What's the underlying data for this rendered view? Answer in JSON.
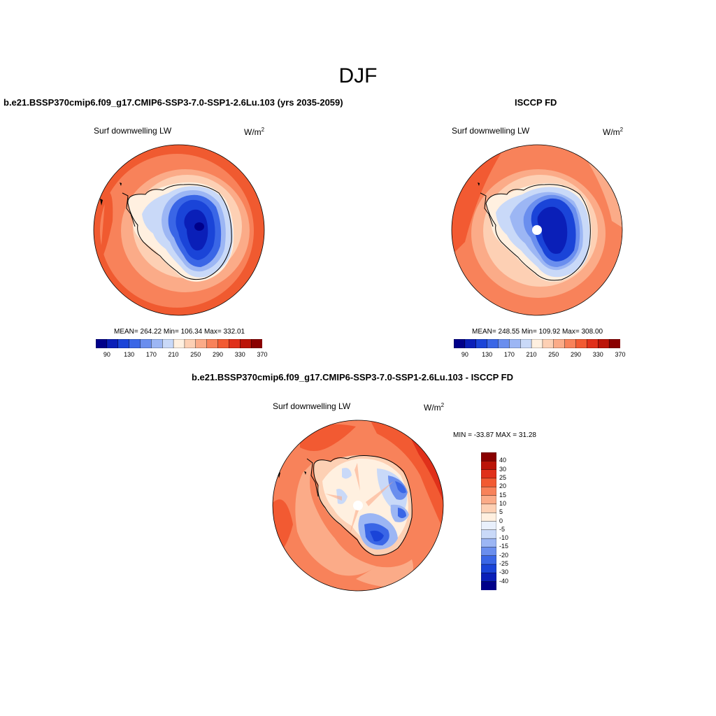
{
  "page": {
    "title": "DJF"
  },
  "panels": {
    "model": {
      "title": "b.e21.BSSP370cmip6.f09_g17.CMIP6-SSP3-7.0-SSP1-2.6Lu.103 (yrs 2035-2059)",
      "variable": "Surf downwelling LW",
      "units": "W/m",
      "units_exp": "2",
      "stats": "MEAN= 264.22  Min= 106.34  Max= 332.01",
      "colorbar_ticks": [
        "90",
        "130",
        "170",
        "210",
        "250",
        "290",
        "330",
        "370"
      ]
    },
    "obs": {
      "title": "ISCCP FD",
      "variable": "Surf downwelling LW",
      "units": "W/m",
      "units_exp": "2",
      "stats": "MEAN= 248.55  Min= 109.92  Max= 308.00",
      "colorbar_ticks": [
        "90",
        "130",
        "170",
        "210",
        "250",
        "290",
        "330",
        "370"
      ]
    },
    "diff": {
      "title": "b.e21.BSSP370cmip6.f09_g17.CMIP6-SSP3-7.0-SSP1-2.6Lu.103 - ISCCP FD",
      "variable": "Surf downwelling LW",
      "units": "W/m",
      "units_exp": "2",
      "stats": "MIN = -33.87 MAX =  31.28",
      "colorbar_ticks": [
        "40",
        "30",
        "25",
        "20",
        "15",
        "10",
        "5",
        "0",
        "-5",
        "-10",
        "-15",
        "-20",
        "-25",
        "-30",
        "-40"
      ]
    }
  },
  "colors": {
    "abs_scale": [
      "#00008a",
      "#0a1fb8",
      "#1a44d8",
      "#3a66e6",
      "#6a8eee",
      "#9cb6f4",
      "#c9d9f8",
      "#fff0e0",
      "#fdd0b4",
      "#fbab88",
      "#f8825a",
      "#f25a32",
      "#e0301a",
      "#bb1408",
      "#8a0000"
    ],
    "diff_scale": [
      "#00008a",
      "#0a1fb8",
      "#1a44d8",
      "#3a66e6",
      "#6a8eee",
      "#9cb6f4",
      "#c9d9f8",
      "#e9f0fc",
      "#fff0e0",
      "#fdd0b4",
      "#fbab88",
      "#f8825a",
      "#f25a32",
      "#e0301a",
      "#bb1408",
      "#8a0000"
    ]
  }
}
